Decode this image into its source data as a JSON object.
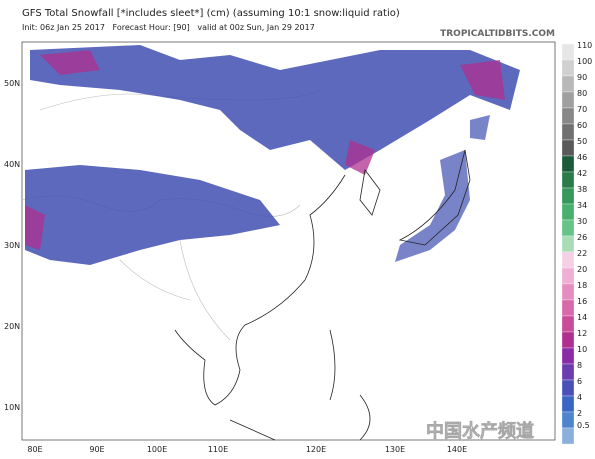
{
  "header": {
    "title": "GFS Total Snowfall [*includes sleet*] (cm) (assuming 10:1 snow:liquid ratio)",
    "subtitle": "Init: 06z Jan 25 2017   Forecast Hour: [90]   valid at 00z Sun, Jan 29 2017",
    "brand": "TROPICALTIDBITS.COM"
  },
  "map": {
    "lat_labels": [
      "50N",
      "40N",
      "30N",
      "20N",
      "10N"
    ],
    "lon_labels": [
      "80E",
      "90E",
      "100E",
      "110E",
      "120E",
      "130E",
      "140E"
    ]
  },
  "legend": {
    "labels": [
      "110",
      "100",
      "90",
      "80",
      "70",
      "60",
      "50",
      "46",
      "42",
      "38",
      "34",
      "30",
      "26",
      "22",
      "20",
      "18",
      "16",
      "14",
      "12",
      "10",
      "8",
      "6",
      "4",
      "2",
      "0.5"
    ],
    "colors": [
      "#e6e6e6",
      "#d0d0d0",
      "#b8b8b8",
      "#a0a0a0",
      "#888888",
      "#707070",
      "#5a5a5a",
      "#1d5a3a",
      "#2a7a4a",
      "#36985a",
      "#48b06c",
      "#66c488",
      "#a8ddb8",
      "#f5cfe4",
      "#eeb0d4",
      "#e48ec0",
      "#d86aaa",
      "#c84c98",
      "#b03090",
      "#8a2ca8",
      "#6a3cb0",
      "#4a50b8",
      "#3a66c4",
      "#4d86cc",
      "#8cb0dc"
    ]
  },
  "watermark": "中国水产频道"
}
